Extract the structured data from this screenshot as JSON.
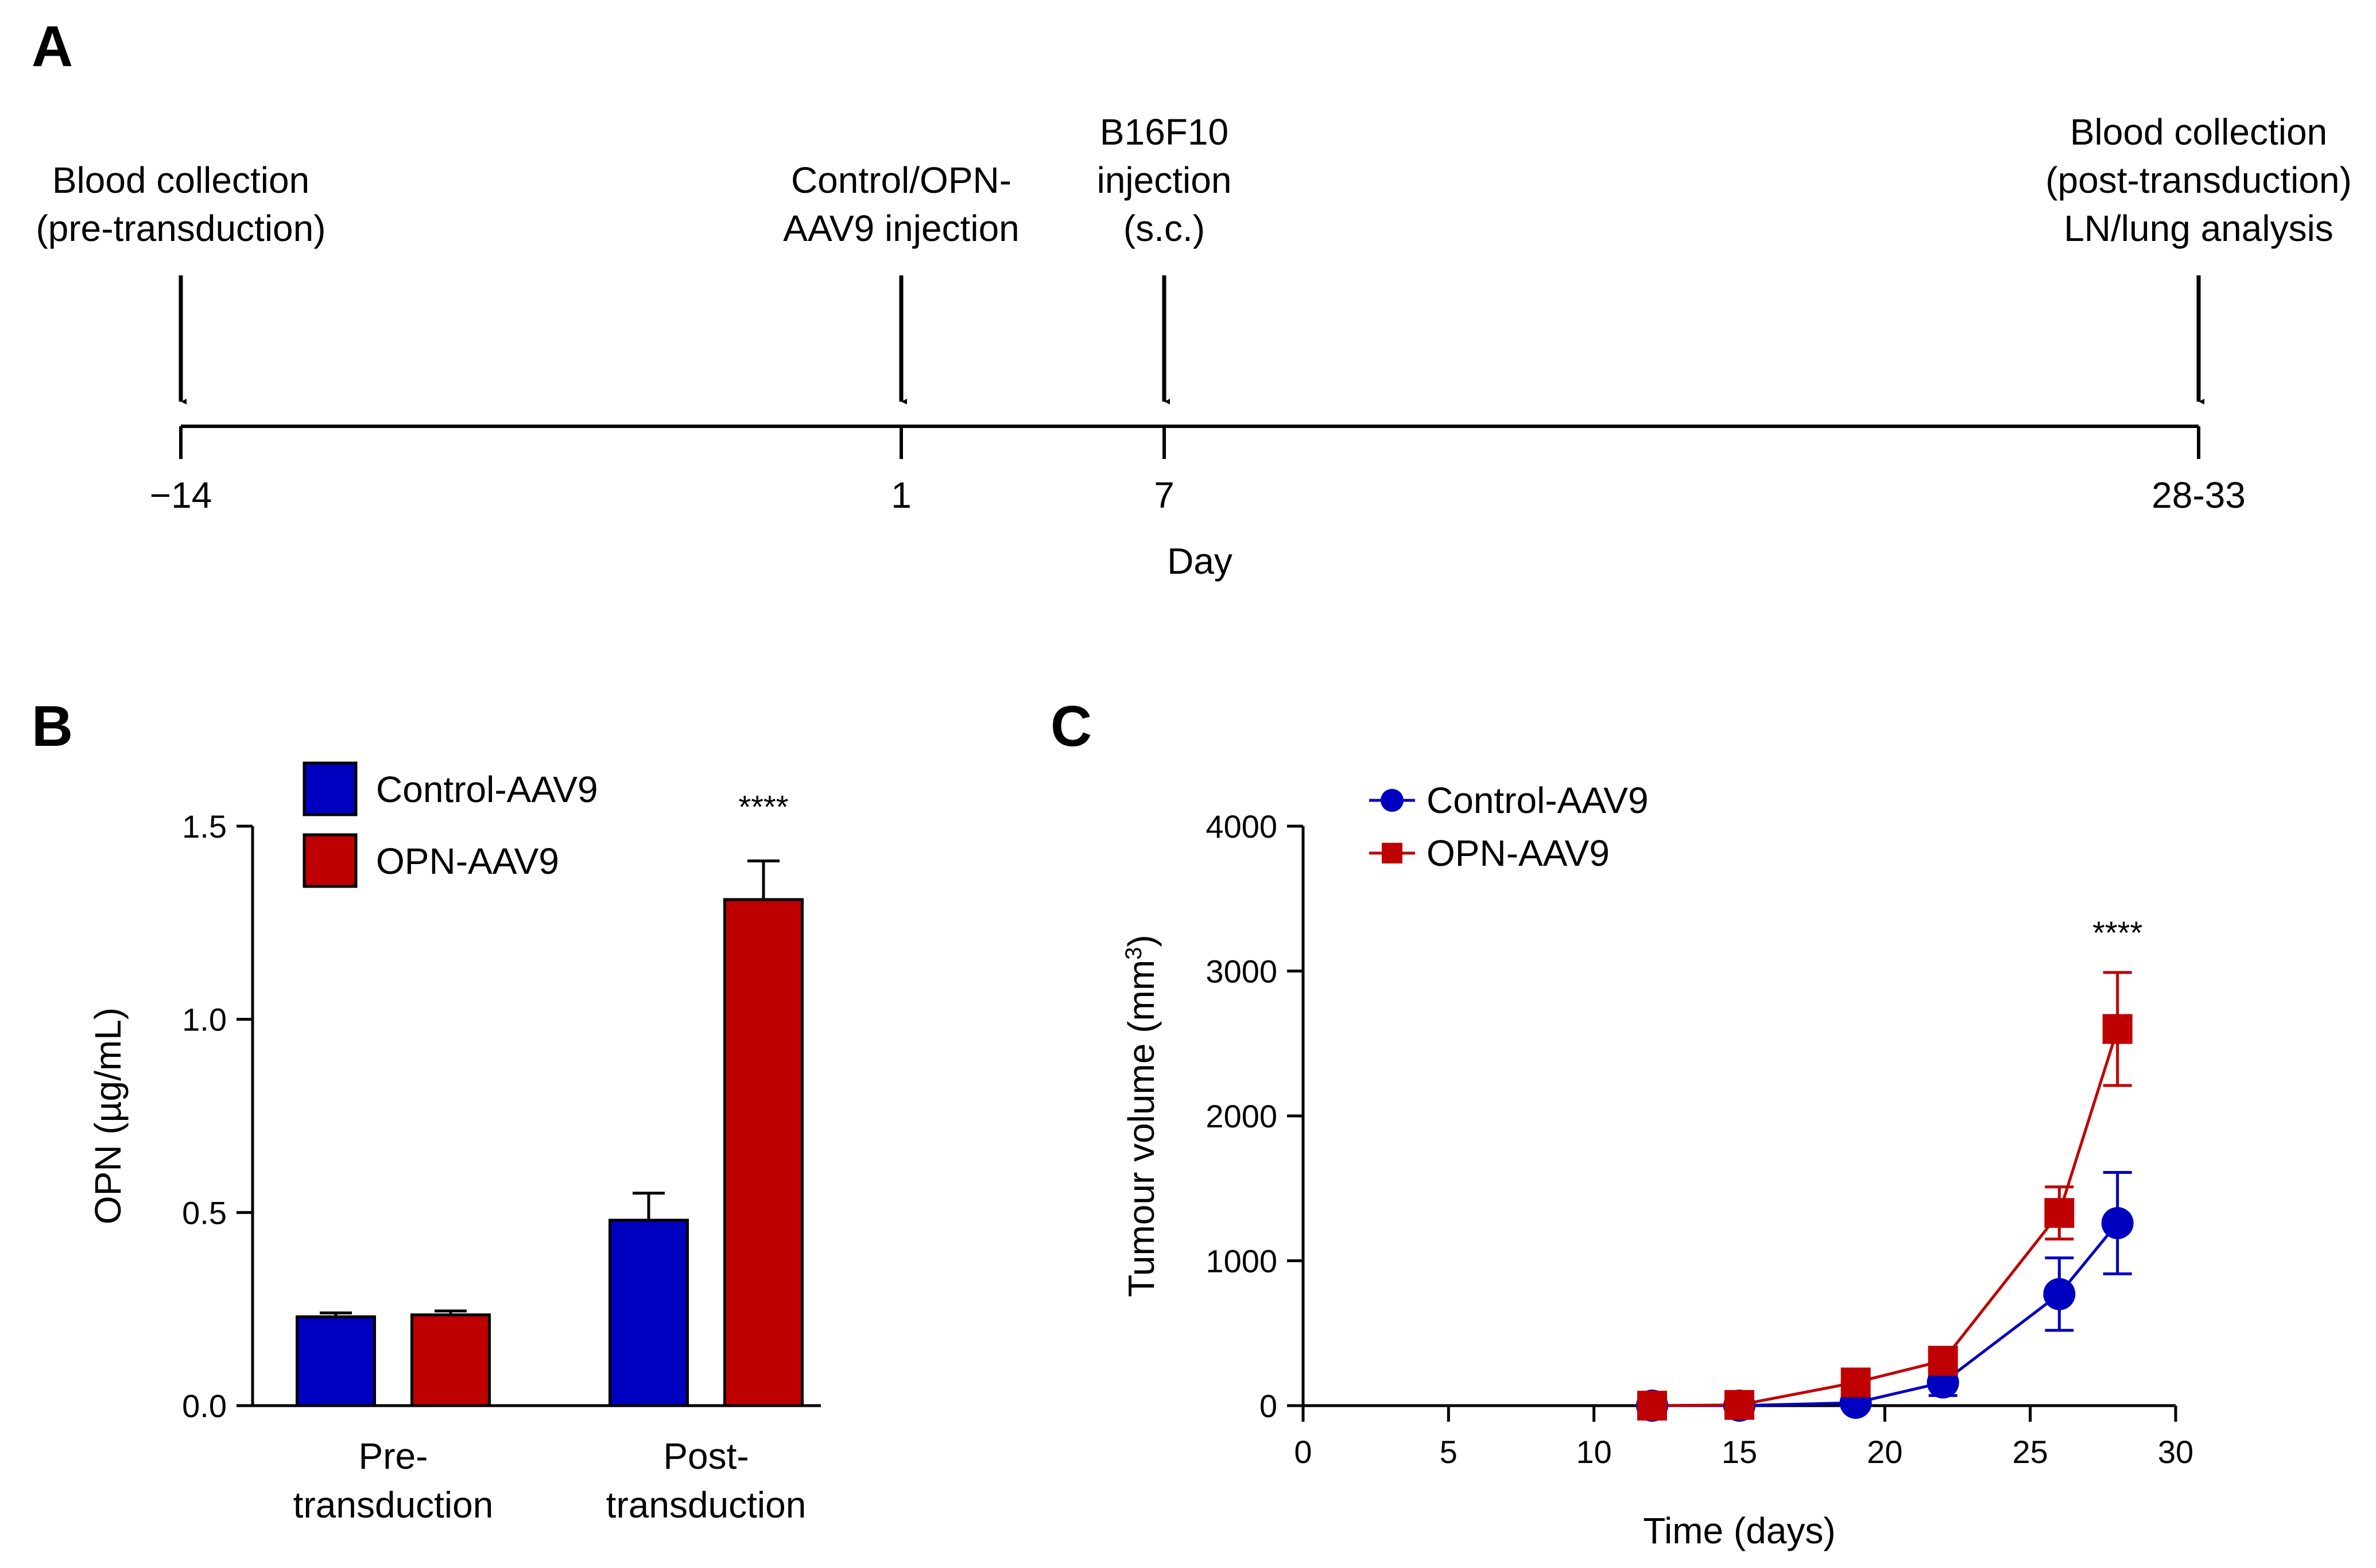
{
  "panels": {
    "a": "A",
    "b": "B",
    "c": "C"
  },
  "colors": {
    "control": "#0000C0",
    "opn": "#BF0000",
    "axis": "#000000"
  },
  "timeline": {
    "axis_label": "Day",
    "events": [
      {
        "day": "−14",
        "lines": [
          "Blood collection",
          "(pre-transduction)"
        ]
      },
      {
        "day": "1",
        "lines": [
          "Control/OPN-",
          "AAV9 injection"
        ]
      },
      {
        "day": "7",
        "lines": [
          "B16F10",
          "injection",
          "(s.c.)"
        ]
      },
      {
        "day": "28-33",
        "lines": [
          "Blood collection",
          "(post-transduction)",
          "LN/lung analysis"
        ]
      }
    ]
  },
  "chart_data": [
    {
      "panel": "B",
      "type": "bar",
      "title": "",
      "xlabel": "",
      "ylabel": "OPN (µg/mL)",
      "ylim": [
        0,
        1.5
      ],
      "yticks": [
        "0.0",
        "0.5",
        "1.0",
        "1.5"
      ],
      "ytick_values": [
        0,
        0.5,
        1.0,
        1.5
      ],
      "categories": [
        [
          "Pre-",
          "transduction"
        ],
        [
          "Post-",
          "transduction"
        ]
      ],
      "series": [
        {
          "name": "Control-AAV9",
          "color": "#0000C0",
          "values": [
            0.23,
            0.48
          ],
          "errors": [
            0.01,
            0.07
          ]
        },
        {
          "name": "OPN-AAV9",
          "color": "#BF0000",
          "values": [
            0.235,
            1.31
          ],
          "errors": [
            0.01,
            0.1
          ]
        }
      ],
      "legend": "top-left",
      "annotations": [
        {
          "text": "****",
          "category": 1,
          "series": 1
        }
      ]
    },
    {
      "panel": "C",
      "type": "line",
      "title": "",
      "xlabel": "Time (days)",
      "ylabel": "Tumour volume (mm",
      "ylabel_sup": "3",
      "ylabel_end": ")",
      "xlim": [
        0,
        30
      ],
      "ylim": [
        0,
        4000
      ],
      "xticks": [
        "0",
        "5",
        "10",
        "15",
        "20",
        "25",
        "30"
      ],
      "xtick_values": [
        0,
        5,
        10,
        15,
        20,
        25,
        30
      ],
      "yticks": [
        "0",
        "1000",
        "2000",
        "3000",
        "4000"
      ],
      "ytick_values": [
        0,
        1000,
        2000,
        3000,
        4000
      ],
      "x": [
        12,
        15,
        19,
        22,
        26,
        28
      ],
      "series": [
        {
          "name": "Control-AAV9",
          "color": "#0000C0",
          "marker": "circle",
          "values": [
            0,
            0,
            20,
            160,
            770,
            1260
          ],
          "errors": [
            0,
            0,
            10,
            90,
            250,
            350
          ]
        },
        {
          "name": "OPN-AAV9",
          "color": "#BF0000",
          "marker": "square",
          "values": [
            0,
            5,
            160,
            310,
            1330,
            2600
          ],
          "errors": [
            0,
            0,
            10,
            50,
            180,
            390
          ]
        }
      ],
      "legend": "top-left",
      "annotations": [
        {
          "text": "****",
          "x": 28
        }
      ]
    }
  ]
}
